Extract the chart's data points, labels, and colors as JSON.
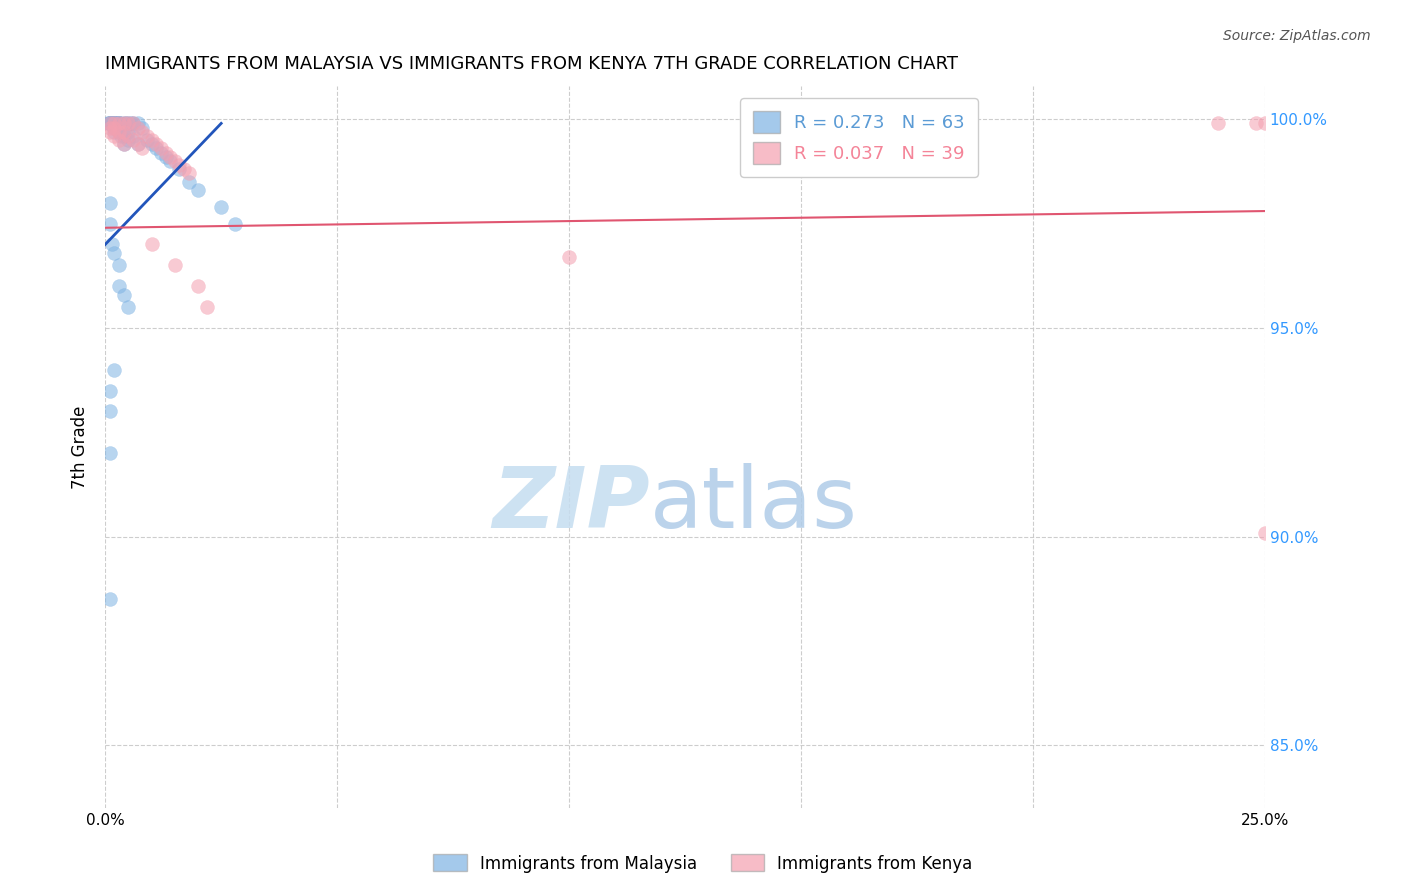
{
  "title": "IMMIGRANTS FROM MALAYSIA VS IMMIGRANTS FROM KENYA 7TH GRADE CORRELATION CHART",
  "source": "Source: ZipAtlas.com",
  "ylabel": "7th Grade",
  "xlim": [
    0.0,
    0.25
  ],
  "ylim": [
    0.835,
    1.008
  ],
  "xtick_labels": [
    "0.0%",
    "",
    "",
    "",
    "",
    "25.0%"
  ],
  "xtick_vals": [
    0.0,
    0.05,
    0.1,
    0.15,
    0.2,
    0.25
  ],
  "ytick_labels": [
    "85.0%",
    "90.0%",
    "95.0%",
    "100.0%"
  ],
  "ytick_vals": [
    0.85,
    0.9,
    0.95,
    1.0
  ],
  "legend_entries": [
    {
      "label": "R = 0.273   N = 63",
      "color": "#5b9bd5"
    },
    {
      "label": "R = 0.037   N = 39",
      "color": "#f48498"
    }
  ],
  "blue_color": "#7eb3e3",
  "pink_color": "#f4a0b0",
  "blue_line_color": "#2255bb",
  "pink_line_color": "#e05570",
  "background_color": "#ffffff",
  "grid_color": "#c8c8c8",
  "malaysia_x": [
    0.0005,
    0.0008,
    0.001,
    0.001,
    0.001,
    0.0012,
    0.0013,
    0.0015,
    0.0015,
    0.0018,
    0.002,
    0.002,
    0.002,
    0.002,
    0.002,
    0.0022,
    0.0025,
    0.0025,
    0.003,
    0.003,
    0.003,
    0.003,
    0.003,
    0.0032,
    0.0035,
    0.004,
    0.004,
    0.004,
    0.004,
    0.0045,
    0.005,
    0.005,
    0.005,
    0.0055,
    0.006,
    0.006,
    0.007,
    0.007,
    0.008,
    0.009,
    0.01,
    0.011,
    0.012,
    0.013,
    0.014,
    0.016,
    0.018,
    0.02,
    0.025,
    0.028,
    0.001,
    0.001,
    0.0015,
    0.002,
    0.003,
    0.003,
    0.004,
    0.005,
    0.002,
    0.001,
    0.001,
    0.001,
    0.001
  ],
  "malaysia_y": [
    0.999,
    0.999,
    0.999,
    0.999,
    0.999,
    0.999,
    0.999,
    0.999,
    0.999,
    0.999,
    0.999,
    0.999,
    0.999,
    0.998,
    0.997,
    0.999,
    0.999,
    0.999,
    0.999,
    0.999,
    0.999,
    0.998,
    0.997,
    0.999,
    0.996,
    0.999,
    0.998,
    0.996,
    0.994,
    0.999,
    0.999,
    0.997,
    0.995,
    0.999,
    0.999,
    0.996,
    0.999,
    0.994,
    0.998,
    0.995,
    0.994,
    0.993,
    0.992,
    0.991,
    0.99,
    0.988,
    0.985,
    0.983,
    0.979,
    0.975,
    0.98,
    0.975,
    0.97,
    0.968,
    0.965,
    0.96,
    0.958,
    0.955,
    0.94,
    0.935,
    0.93,
    0.92,
    0.885
  ],
  "malaysia_trendline_x": [
    0.0,
    0.025
  ],
  "malaysia_trendline_y": [
    0.97,
    0.999
  ],
  "kenya_x": [
    0.001,
    0.001,
    0.001,
    0.002,
    0.002,
    0.002,
    0.003,
    0.003,
    0.003,
    0.004,
    0.004,
    0.004,
    0.005,
    0.005,
    0.006,
    0.006,
    0.007,
    0.007,
    0.008,
    0.008,
    0.009,
    0.01,
    0.011,
    0.012,
    0.013,
    0.014,
    0.015,
    0.016,
    0.017,
    0.018,
    0.01,
    0.015,
    0.02,
    0.022,
    0.1,
    0.24,
    0.248,
    0.25,
    0.25
  ],
  "kenya_y": [
    0.999,
    0.998,
    0.997,
    0.999,
    0.998,
    0.996,
    0.999,
    0.997,
    0.995,
    0.999,
    0.997,
    0.994,
    0.999,
    0.996,
    0.999,
    0.995,
    0.998,
    0.994,
    0.997,
    0.993,
    0.996,
    0.995,
    0.994,
    0.993,
    0.992,
    0.991,
    0.99,
    0.989,
    0.988,
    0.987,
    0.97,
    0.965,
    0.96,
    0.955,
    0.967,
    0.999,
    0.999,
    0.901,
    0.999
  ],
  "kenya_trendline_x": [
    0.0,
    0.25
  ],
  "kenya_trendline_y": [
    0.974,
    0.978
  ]
}
